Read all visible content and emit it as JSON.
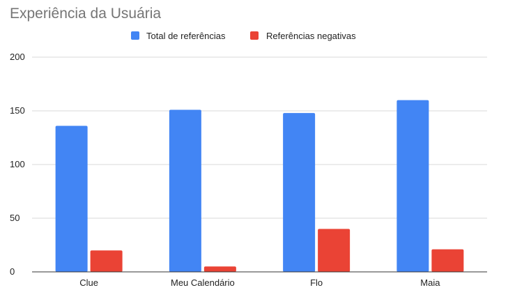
{
  "chart_data": {
    "type": "bar",
    "title": "Experiência da Usuária",
    "categories": [
      "Clue",
      "Meu Calendário",
      "Flo",
      "Maia"
    ],
    "series": [
      {
        "name": "Total de referências",
        "color": "#4285f4",
        "values": [
          136,
          151,
          148,
          160
        ]
      },
      {
        "name": "Referências negativas",
        "color": "#ea4335",
        "values": [
          20,
          5,
          40,
          21
        ]
      }
    ],
    "ylim": [
      0,
      200
    ],
    "y_ticks": [
      "0",
      "50",
      "100",
      "150",
      "200"
    ],
    "grid": true,
    "legend_position": "top-center"
  }
}
